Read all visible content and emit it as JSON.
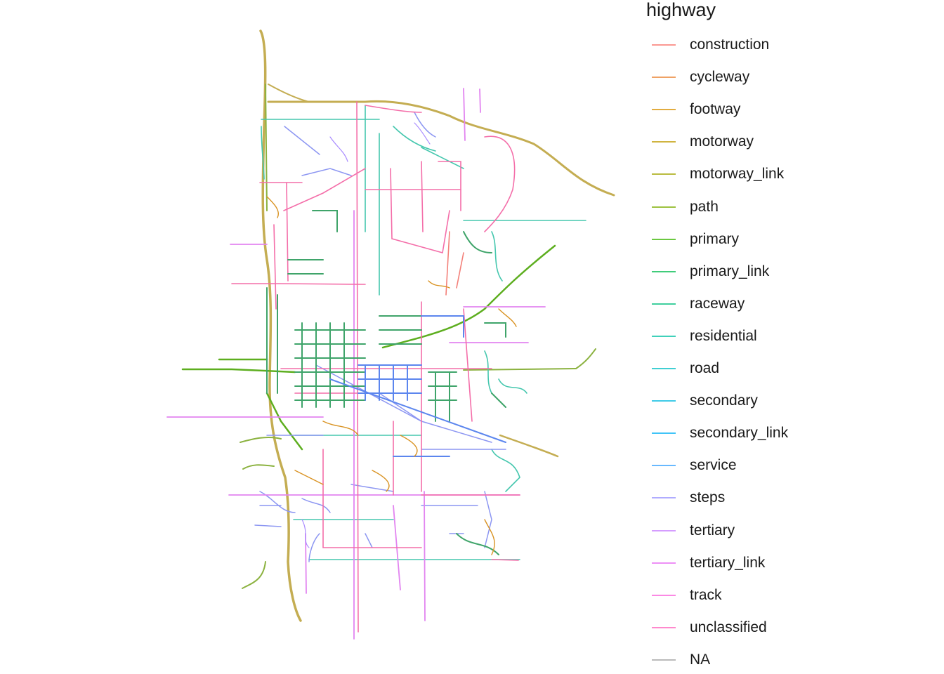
{
  "legend": {
    "title": "highway",
    "items": [
      {
        "label": "construction",
        "color": "#F8766D"
      },
      {
        "label": "cycleway",
        "color": "#EA8331"
      },
      {
        "label": "footway",
        "color": "#D89000"
      },
      {
        "label": "motorway",
        "color": "#C09B00"
      },
      {
        "label": "motorway_link",
        "color": "#A3A500"
      },
      {
        "label": "path",
        "color": "#7CAE00"
      },
      {
        "label": "primary",
        "color": "#39B600"
      },
      {
        "label": "primary_link",
        "color": "#00BB4E"
      },
      {
        "label": "raceway",
        "color": "#00BF7D"
      },
      {
        "label": "residential",
        "color": "#00C1A3"
      },
      {
        "label": "road",
        "color": "#00BFC4"
      },
      {
        "label": "secondary",
        "color": "#00BAE0"
      },
      {
        "label": "secondary_link",
        "color": "#00B0F6"
      },
      {
        "label": "service",
        "color": "#35A2FF"
      },
      {
        "label": "steps",
        "color": "#9590FF"
      },
      {
        "label": "tertiary",
        "color": "#C77CFF"
      },
      {
        "label": "tertiary_link",
        "color": "#E76BF3"
      },
      {
        "label": "track",
        "color": "#FA62DB"
      },
      {
        "label": "unclassified",
        "color": "#FF62BC"
      },
      {
        "label": "NA",
        "color": "#A3A3A3"
      }
    ]
  }
}
